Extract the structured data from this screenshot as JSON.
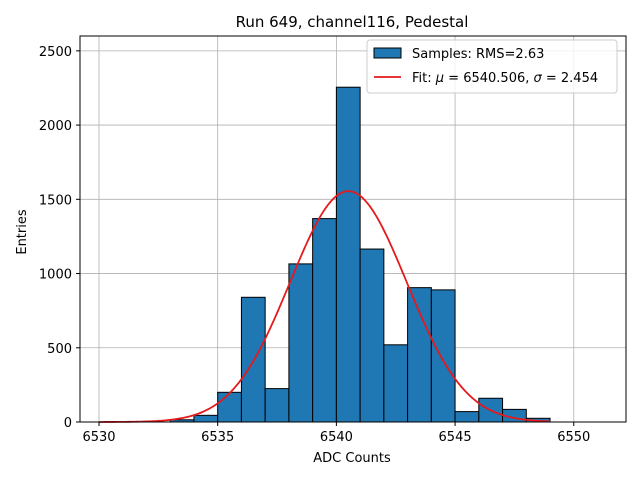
{
  "chart_data": {
    "type": "histogram",
    "title": "Run 649, channel116, Pedestal",
    "xlabel": "ADC Counts",
    "ylabel": "Entries",
    "xlim": [
      6529.2,
      6552.2
    ],
    "ylim": [
      0,
      2600
    ],
    "xticks": [
      6530,
      6535,
      6540,
      6545,
      6550
    ],
    "yticks": [
      0,
      500,
      1000,
      1500,
      2000,
      2500
    ],
    "grid": true,
    "legend_position": "top-right",
    "bins": [
      {
        "x0": 6533,
        "x1": 6534,
        "value": 15
      },
      {
        "x0": 6534,
        "x1": 6535,
        "value": 45
      },
      {
        "x0": 6535,
        "x1": 6536,
        "value": 200
      },
      {
        "x0": 6536,
        "x1": 6537,
        "value": 840
      },
      {
        "x0": 6537,
        "x1": 6538,
        "value": 225
      },
      {
        "x0": 6538,
        "x1": 6539,
        "value": 1065
      },
      {
        "x0": 6539,
        "x1": 6540,
        "value": 1370
      },
      {
        "x0": 6540,
        "x1": 6541,
        "value": 2255
      },
      {
        "x0": 6541,
        "x1": 6542,
        "value": 1165
      },
      {
        "x0": 6542,
        "x1": 6543,
        "value": 520
      },
      {
        "x0": 6543,
        "x1": 6544,
        "value": 905
      },
      {
        "x0": 6544,
        "x1": 6545,
        "value": 890
      },
      {
        "x0": 6545,
        "x1": 6546,
        "value": 70
      },
      {
        "x0": 6546,
        "x1": 6547,
        "value": 160
      },
      {
        "x0": 6547,
        "x1": 6548,
        "value": 85
      },
      {
        "x0": 6548,
        "x1": 6549,
        "value": 25
      }
    ],
    "histogram_style": {
      "fill": "#1f77b4",
      "edge": "#000000"
    },
    "fit": {
      "mu": 6540.506,
      "sigma": 2.454,
      "amplitude": 1555,
      "x_range": [
        6530,
        6549
      ],
      "color": "#e41a1c"
    },
    "legend": [
      {
        "label": "Samples: RMS=2.63",
        "kind": "patch"
      },
      {
        "label_prefix": "Fit: ",
        "mu_symbol": "μ",
        "mu_text": " = 6540.506, ",
        "sigma_symbol": "σ",
        "sigma_text": " = 2.454",
        "kind": "line"
      }
    ]
  }
}
